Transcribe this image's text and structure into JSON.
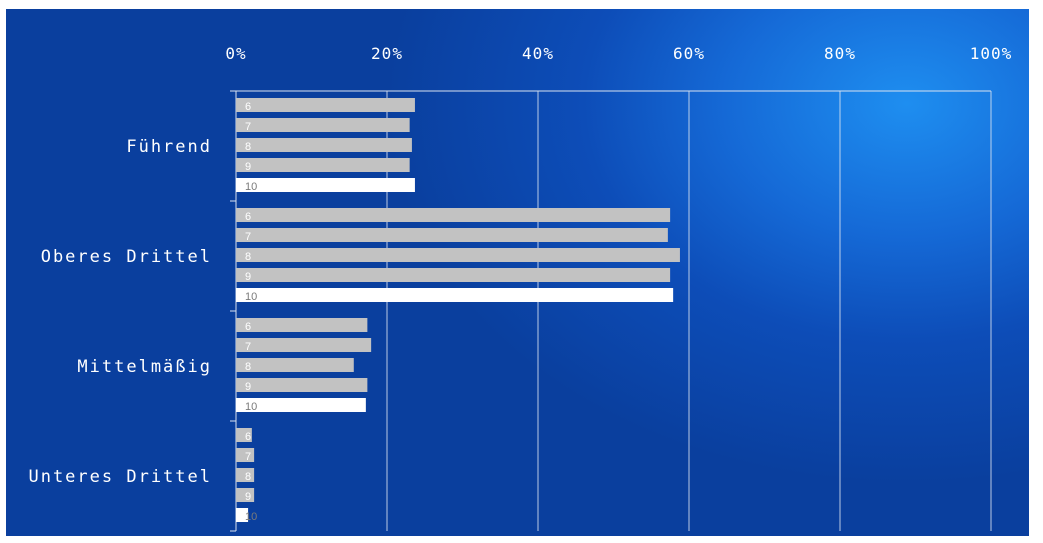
{
  "chart_data": {
    "type": "bar",
    "orientation": "horizontal",
    "title": "",
    "xlabel": "",
    "ylabel": "",
    "xlim": [
      0,
      100
    ],
    "x_ticks": [
      "0%",
      "20%",
      "40%",
      "60%",
      "80%",
      "100%"
    ],
    "grid": true,
    "categories": [
      "Führend",
      "Oberes Drittel",
      "Mittelmäßig",
      "Unteres Drittel"
    ],
    "series": [
      {
        "name": "6",
        "values": [
          23.7,
          57.5,
          17.4,
          2.1
        ]
      },
      {
        "name": "7",
        "values": [
          23.0,
          57.2,
          17.9,
          2.4
        ]
      },
      {
        "name": "8",
        "values": [
          23.3,
          58.8,
          15.6,
          2.4
        ]
      },
      {
        "name": "9",
        "values": [
          23.0,
          57.5,
          17.4,
          2.4
        ]
      },
      {
        "name": "10",
        "values": [
          23.7,
          57.9,
          17.2,
          1.6
        ]
      }
    ],
    "colors": {
      "default_bar": "#c2c2c2",
      "highlight_bar": "#ffffff",
      "highlight_series": "10",
      "grid": "#d8e2f0",
      "text": "#ffffff"
    }
  }
}
